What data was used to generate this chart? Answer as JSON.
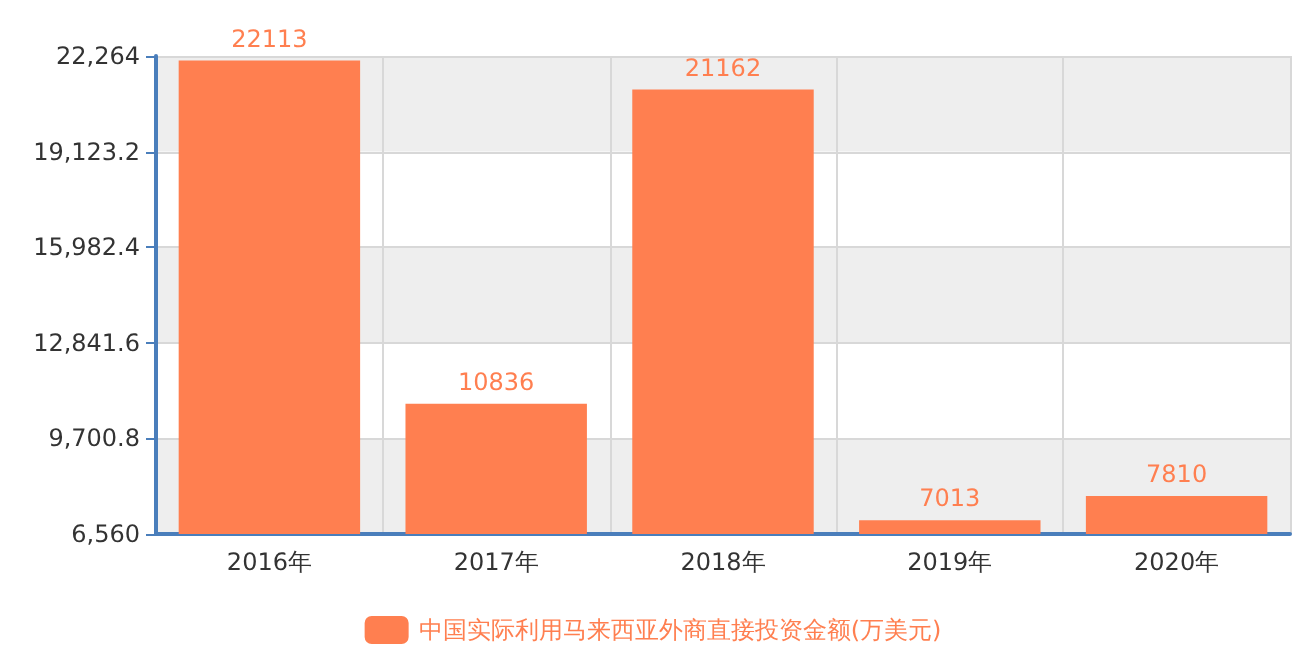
{
  "chart_data": {
    "type": "bar",
    "categories": [
      "2016年",
      "2017年",
      "2018年",
      "2019年",
      "2020年"
    ],
    "series": [
      {
        "name": "中国实际利用马来西亚外商直接投资金额(万美元)",
        "color": "#ff7f50",
        "values": [
          22113,
          10836,
          21162,
          7013,
          7810
        ]
      }
    ],
    "ylim": [
      6560,
      22264
    ],
    "yticks": [
      {
        "value": 6560,
        "label": "6,560"
      },
      {
        "value": 9700.8,
        "label": "9,700.8"
      },
      {
        "value": 12841.6,
        "label": "12,841.6"
      },
      {
        "value": 15982.4,
        "label": "15,982.4"
      },
      {
        "value": 19123.2,
        "label": "19,123.2"
      },
      {
        "value": 22264,
        "label": "22,264"
      }
    ],
    "grid": true,
    "legend": "bottom",
    "data_labels": true
  }
}
